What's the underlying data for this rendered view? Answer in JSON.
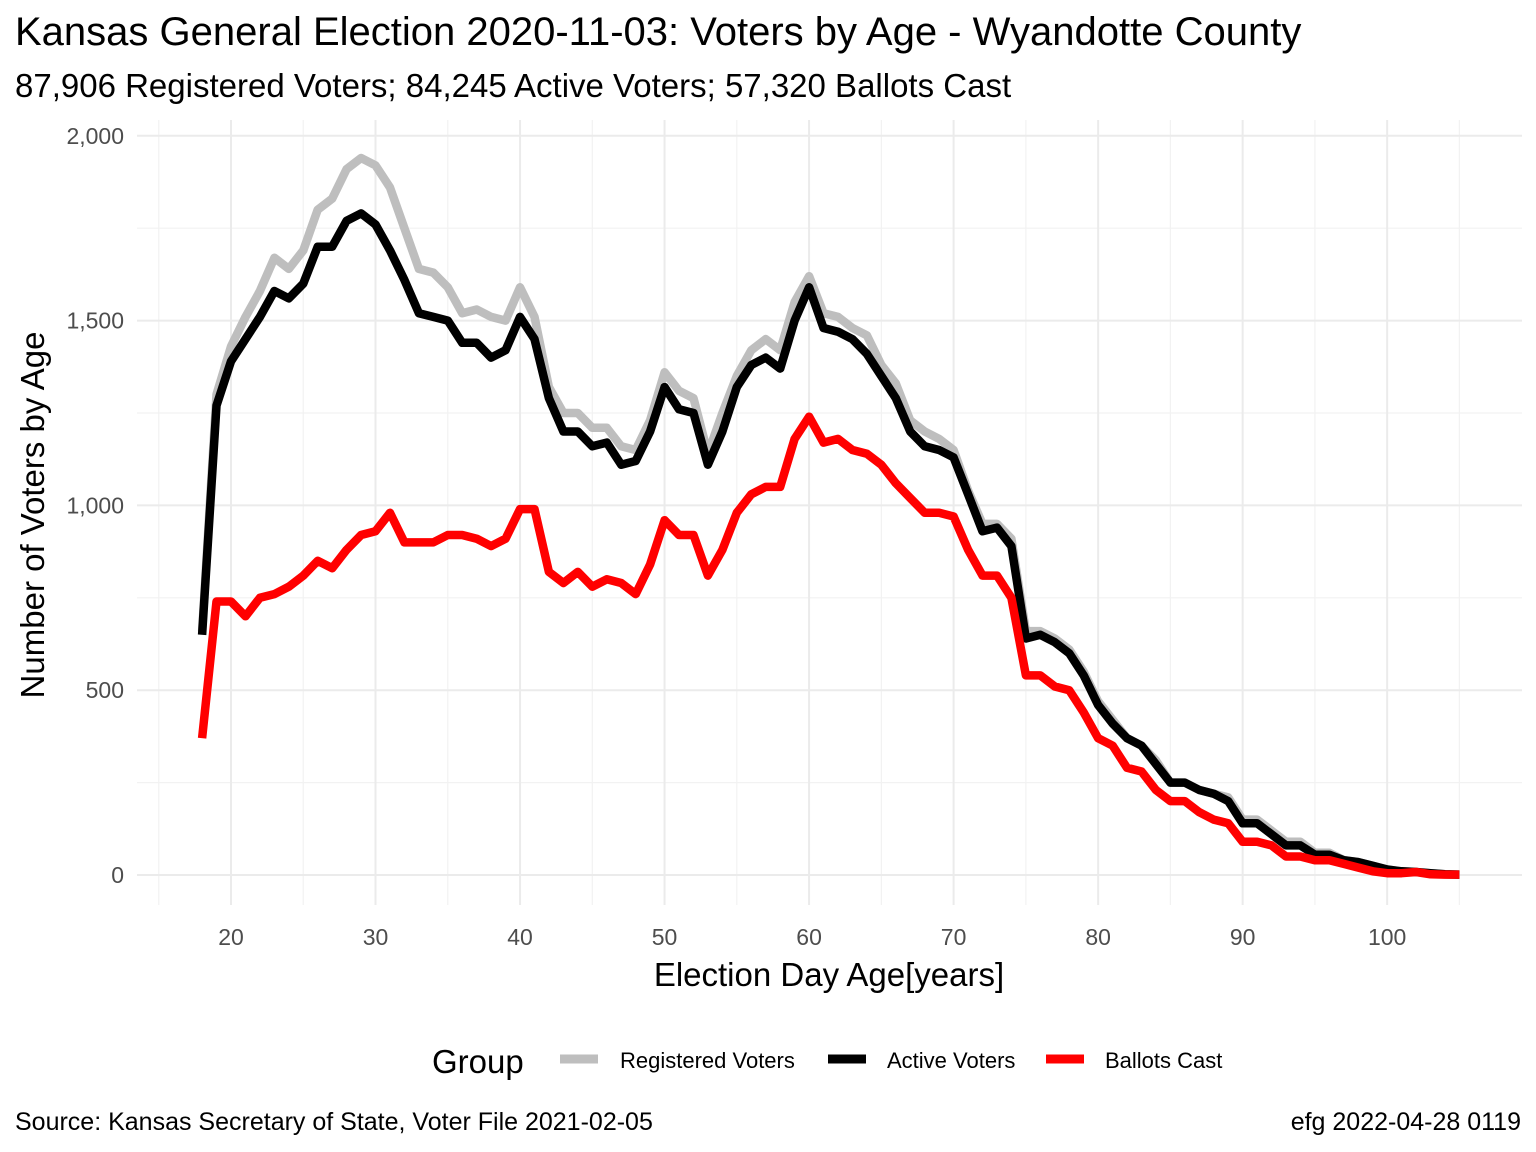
{
  "title": "Kansas General Election 2020-11-03:  Voters by Age - Wyandotte County",
  "subtitle": "87,906 Registered Voters; 84,245 Active Voters; 57,320 Ballots Cast",
  "caption_left": "Source:  Kansas Secretary of State, Voter File  2021-02-05",
  "caption_right": "efg 2022-04-28 0119",
  "chart_data": {
    "type": "line",
    "xlabel": "Election Day Age[years]",
    "ylabel": "Number of Voters by Age",
    "xlim": [
      18,
      105
    ],
    "ylim": [
      0,
      2000
    ],
    "x_ticks": [
      20,
      30,
      40,
      50,
      60,
      70,
      80,
      90,
      100
    ],
    "x_tick_labels": [
      "20",
      "30",
      "40",
      "50",
      "60",
      "70",
      "80",
      "90",
      "100"
    ],
    "y_ticks": [
      0,
      500,
      1000,
      1500,
      2000
    ],
    "y_tick_labels": [
      "0",
      "500",
      "1,000",
      "1,500",
      "2,000"
    ],
    "grid": true,
    "legend_title": "Group",
    "legend_position": "bottom",
    "x": [
      18,
      19,
      20,
      21,
      22,
      23,
      24,
      25,
      26,
      27,
      28,
      29,
      30,
      31,
      32,
      33,
      34,
      35,
      36,
      37,
      38,
      39,
      40,
      41,
      42,
      43,
      44,
      45,
      46,
      47,
      48,
      49,
      50,
      51,
      52,
      53,
      54,
      55,
      56,
      57,
      58,
      59,
      60,
      61,
      62,
      63,
      64,
      65,
      66,
      67,
      68,
      69,
      70,
      71,
      72,
      73,
      74,
      75,
      76,
      77,
      78,
      79,
      80,
      81,
      82,
      83,
      84,
      85,
      86,
      87,
      88,
      89,
      90,
      91,
      92,
      93,
      94,
      95,
      96,
      97,
      98,
      99,
      100,
      101,
      102,
      103,
      104,
      105
    ],
    "series": [
      {
        "name": "Registered Voters",
        "color": "#bebebe",
        "values": [
          660,
          1300,
          1430,
          1510,
          1580,
          1670,
          1640,
          1690,
          1800,
          1830,
          1910,
          1940,
          1920,
          1860,
          1750,
          1640,
          1630,
          1590,
          1520,
          1530,
          1510,
          1500,
          1590,
          1510,
          1320,
          1250,
          1250,
          1210,
          1210,
          1160,
          1150,
          1230,
          1360,
          1310,
          1290,
          1140,
          1250,
          1350,
          1420,
          1450,
          1420,
          1550,
          1620,
          1520,
          1510,
          1480,
          1460,
          1380,
          1330,
          1230,
          1200,
          1180,
          1150,
          1040,
          950,
          950,
          910,
          660,
          660,
          640,
          610,
          550,
          470,
          420,
          370,
          350,
          310,
          250,
          250,
          230,
          220,
          210,
          150,
          150,
          120,
          90,
          90,
          60,
          60,
          40,
          35,
          25,
          15,
          10,
          8,
          5,
          2,
          1
        ]
      },
      {
        "name": "Active Voters",
        "color": "#000000",
        "values": [
          650,
          1270,
          1390,
          1450,
          1510,
          1580,
          1560,
          1600,
          1700,
          1700,
          1770,
          1790,
          1760,
          1690,
          1610,
          1520,
          1510,
          1500,
          1440,
          1440,
          1400,
          1420,
          1510,
          1450,
          1290,
          1200,
          1200,
          1160,
          1170,
          1110,
          1120,
          1200,
          1320,
          1260,
          1250,
          1110,
          1200,
          1320,
          1380,
          1400,
          1370,
          1500,
          1590,
          1480,
          1470,
          1450,
          1410,
          1350,
          1290,
          1200,
          1160,
          1150,
          1130,
          1030,
          930,
          940,
          890,
          640,
          650,
          630,
          600,
          540,
          460,
          410,
          370,
          350,
          300,
          250,
          250,
          230,
          220,
          200,
          140,
          140,
          110,
          80,
          80,
          55,
          55,
          40,
          35,
          25,
          15,
          10,
          8,
          5,
          2,
          1
        ]
      },
      {
        "name": "Ballots Cast",
        "color": "#ff0000",
        "values": [
          370,
          740,
          740,
          700,
          750,
          760,
          780,
          810,
          850,
          830,
          880,
          920,
          930,
          980,
          900,
          900,
          900,
          920,
          920,
          910,
          890,
          910,
          990,
          990,
          820,
          790,
          820,
          780,
          800,
          790,
          760,
          840,
          960,
          920,
          920,
          810,
          880,
          980,
          1030,
          1050,
          1050,
          1180,
          1240,
          1170,
          1180,
          1150,
          1140,
          1110,
          1060,
          1020,
          980,
          980,
          970,
          880,
          810,
          810,
          750,
          540,
          540,
          510,
          500,
          440,
          370,
          350,
          290,
          280,
          230,
          200,
          200,
          170,
          150,
          140,
          90,
          90,
          80,
          50,
          50,
          40,
          40,
          30,
          20,
          10,
          5,
          5,
          8,
          2,
          1,
          1
        ]
      }
    ]
  }
}
